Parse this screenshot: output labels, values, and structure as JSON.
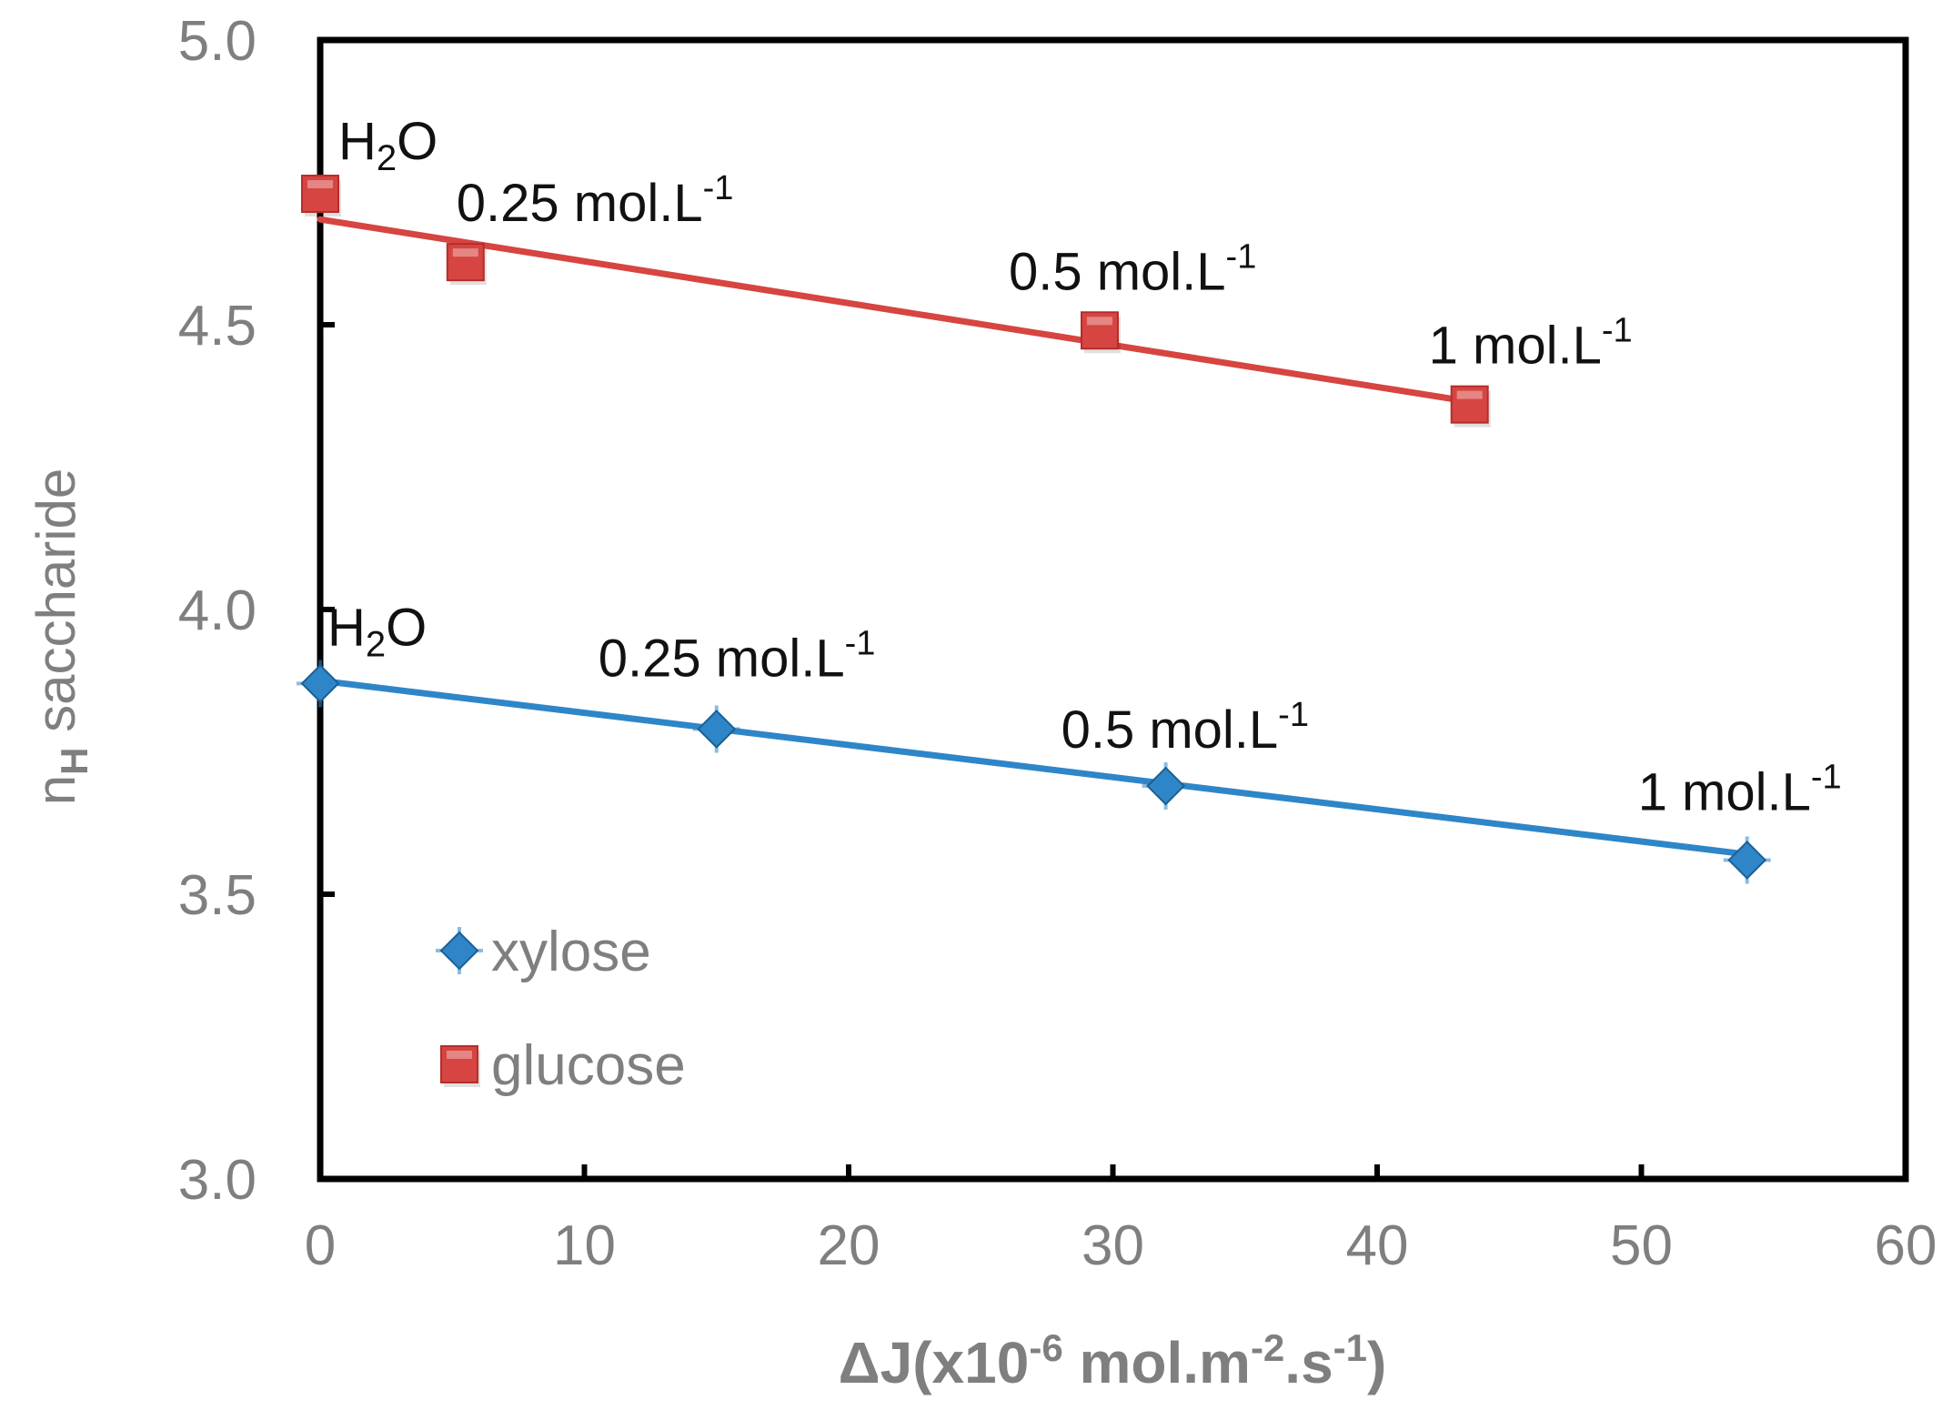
{
  "chart_data": {
    "type": "scatter",
    "title": "",
    "xlabel": {
      "main": "ΔJ(x10",
      "sup1": "-6",
      "mid1": " mol.m",
      "sup2": "-2",
      "mid2": ".s",
      "sup3": "-1",
      "end": ")"
    },
    "ylabel": {
      "n": "n",
      "sub": "H",
      "rest": " saccharide"
    },
    "xlim": [
      0,
      60
    ],
    "ylim": [
      3.0,
      5.0
    ],
    "x_ticks": [
      0,
      10,
      20,
      30,
      40,
      50,
      60
    ],
    "x_tick_labels": [
      "0",
      "10",
      "20",
      "30",
      "40",
      "50",
      "60"
    ],
    "y_ticks": [
      3.0,
      3.5,
      4.0,
      4.5,
      5.0
    ],
    "y_tick_labels": [
      "3.0",
      "3.5",
      "4.0",
      "4.5",
      "5.0"
    ],
    "legend_position": "bottom-left",
    "series": [
      {
        "name": "xylose",
        "color": "#2e86c8",
        "marker": "diamond",
        "points": [
          {
            "x": 0,
            "y": 3.87,
            "label": "H",
            "sub": "2",
            "label_end": "O"
          },
          {
            "x": 15,
            "y": 3.79,
            "label": "0.25 mol.L",
            "sup": "-1"
          },
          {
            "x": 32,
            "y": 3.69,
            "label": "0.5 mol.L",
            "sup": "-1"
          },
          {
            "x": 54,
            "y": 3.56,
            "label": "1 mol.L",
            "sup": "-1"
          }
        ],
        "trendline": {
          "x0": 0,
          "y0": 3.875,
          "x1": 54,
          "y1": 3.57
        }
      },
      {
        "name": "glucose",
        "color": "#d64541",
        "marker": "square",
        "points": [
          {
            "x": 0,
            "y": 4.73,
            "label": "H",
            "sub": "2",
            "label_end": "O"
          },
          {
            "x": 5.5,
            "y": 4.61,
            "label": "0.25 mol.L",
            "sup": "-1"
          },
          {
            "x": 29.5,
            "y": 4.49,
            "label": "0.5 mol.L",
            "sup": "-1"
          },
          {
            "x": 43.5,
            "y": 4.36,
            "label": "1 mol.L",
            "sup": "-1"
          }
        ],
        "trendline": {
          "x0": 0,
          "y0": 4.685,
          "x1": 43.5,
          "y1": 4.365
        }
      }
    ]
  }
}
